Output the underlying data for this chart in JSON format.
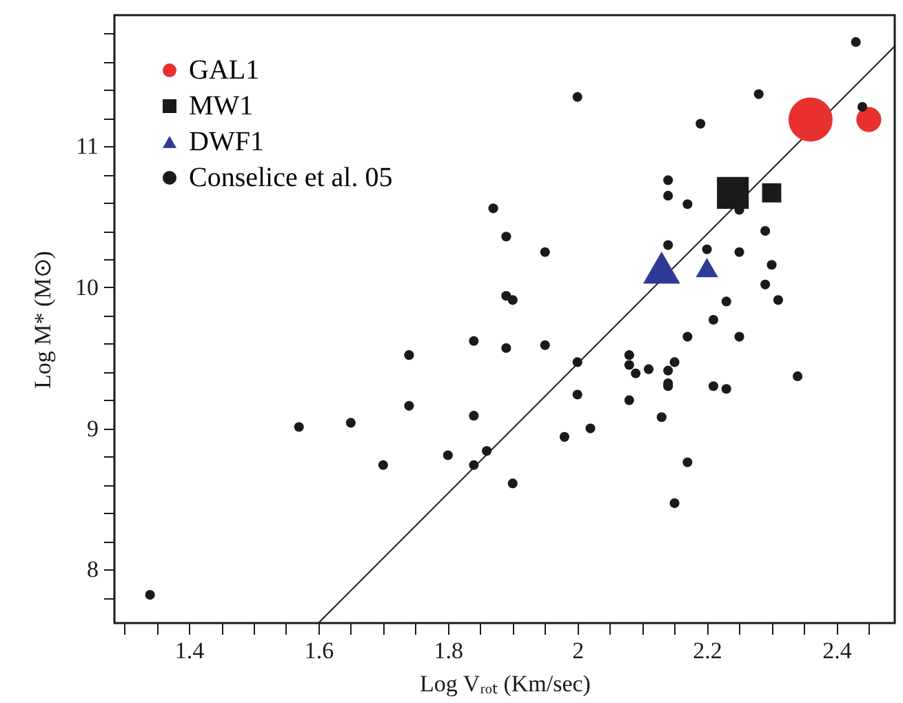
{
  "chart_data": {
    "type": "scatter",
    "xlabel": "Log Vᵣₒₜ (Km/sec)",
    "ylabel": "Log M* (M⊙)",
    "xlim": [
      1.285,
      2.49
    ],
    "ylim": [
      7.62,
      11.93
    ],
    "xticks": [
      {
        "value": 1.3,
        "label": null
      },
      {
        "value": 1.35,
        "label": null
      },
      1.4,
      {
        "value": 1.45,
        "label": null
      },
      {
        "value": 1.5,
        "label": null
      },
      {
        "value": 1.55,
        "label": null
      },
      1.6,
      {
        "value": 1.65,
        "label": null
      },
      {
        "value": 1.7,
        "label": null
      },
      {
        "value": 1.75,
        "label": null
      },
      1.8,
      {
        "value": 1.85,
        "label": null
      },
      {
        "value": 1.9,
        "label": null
      },
      {
        "value": 1.95,
        "label": null
      },
      2,
      {
        "value": 2.05,
        "label": null
      },
      {
        "value": 2.1,
        "label": null
      },
      {
        "value": 2.15,
        "label": null
      },
      2.2,
      {
        "value": 2.25,
        "label": null
      },
      {
        "value": 2.3,
        "label": null
      },
      {
        "value": 2.35,
        "label": null
      },
      2.4,
      {
        "value": 2.45,
        "label": null
      }
    ],
    "yticks": [
      {
        "value": 7.8,
        "label": null
      },
      8,
      {
        "value": 8.2,
        "label": null
      },
      {
        "value": 8.4,
        "label": null
      },
      {
        "value": 8.6,
        "label": null
      },
      {
        "value": 8.8,
        "label": null
      },
      9,
      {
        "value": 9.2,
        "label": null
      },
      {
        "value": 9.4,
        "label": null
      },
      {
        "value": 9.6,
        "label": null
      },
      {
        "value": 9.8,
        "label": null
      },
      10,
      {
        "value": 10.2,
        "label": null
      },
      {
        "value": 10.4,
        "label": null
      },
      {
        "value": 10.6,
        "label": null
      },
      {
        "value": 10.8,
        "label": null
      },
      11,
      {
        "value": 11.2,
        "label": null
      },
      {
        "value": 11.4,
        "label": null
      },
      {
        "value": 11.6,
        "label": null
      },
      {
        "value": 11.8,
        "label": null
      }
    ],
    "grid": false,
    "legend": "top left",
    "series": [
      {
        "type": "line",
        "color": "#1a1a1a",
        "x": [
          1.6,
          2.49
        ],
        "values": [
          7.62,
          11.71
        ]
      },
      {
        "type": "bubble",
        "name": "GAL1",
        "color": "#e8302f",
        "marker": "circle",
        "x": [
          2.36,
          2.45
        ],
        "values": [
          11.19,
          11.19
        ],
        "sizes": [
          1,
          0.32
        ]
      },
      {
        "type": "bubble",
        "name": "MW1",
        "color": "#1a1a1a",
        "marker": "square",
        "x": [
          2.24,
          2.3
        ],
        "values": [
          10.67,
          10.67
        ],
        "sizes": [
          0.66,
          0.24
        ]
      },
      {
        "type": "bubble",
        "name": "DWF1",
        "color": "#2e3a96",
        "marker": "triangle",
        "x": [
          2.13,
          2.2
        ],
        "values": [
          10.14,
          10.14
        ],
        "sizes": [
          0.39,
          0.14
        ]
      },
      {
        "name": "Conselice et al. 05",
        "color": "#1a1a1a",
        "marker": "circle",
        "x": [
          1.87,
          1.89,
          1.89,
          1.9,
          1.84,
          2.43,
          2.0,
          2.28,
          2.44,
          2.19,
          2.14,
          2.14,
          2.17,
          2.25,
          1.95,
          2.14,
          2.2,
          2.25,
          2.29,
          2.3,
          2.29,
          2.31,
          2.23,
          2.21,
          2.17,
          2.25,
          1.89,
          1.74,
          1.74,
          1.57,
          1.65,
          1.84,
          1.8,
          1.86,
          1.7,
          1.84,
          1.9,
          1.34,
          1.95,
          2.0,
          2.08,
          2.08,
          2.09,
          2.11,
          2.15,
          2.14,
          2.14,
          2.14,
          2.21,
          2.23,
          2.34,
          2.0,
          2.08,
          2.13,
          2.02,
          1.98,
          2.17,
          2.15
        ],
        "values": [
          10.56,
          10.36,
          9.94,
          9.91,
          9.62,
          11.74,
          11.35,
          11.37,
          11.28,
          11.16,
          10.76,
          10.65,
          10.59,
          10.55,
          10.25,
          10.3,
          10.27,
          10.25,
          10.4,
          10.16,
          10.02,
          9.91,
          9.9,
          9.77,
          9.65,
          9.65,
          9.57,
          9.52,
          9.16,
          9.01,
          9.04,
          9.09,
          8.81,
          8.84,
          8.74,
          8.74,
          8.61,
          7.82,
          9.59,
          9.47,
          9.52,
          9.45,
          9.39,
          9.42,
          9.47,
          9.41,
          9.32,
          9.3,
          9.3,
          9.28,
          9.37,
          9.24,
          9.2,
          9.08,
          9.0,
          8.94,
          8.76,
          8.47
        ]
      }
    ]
  }
}
